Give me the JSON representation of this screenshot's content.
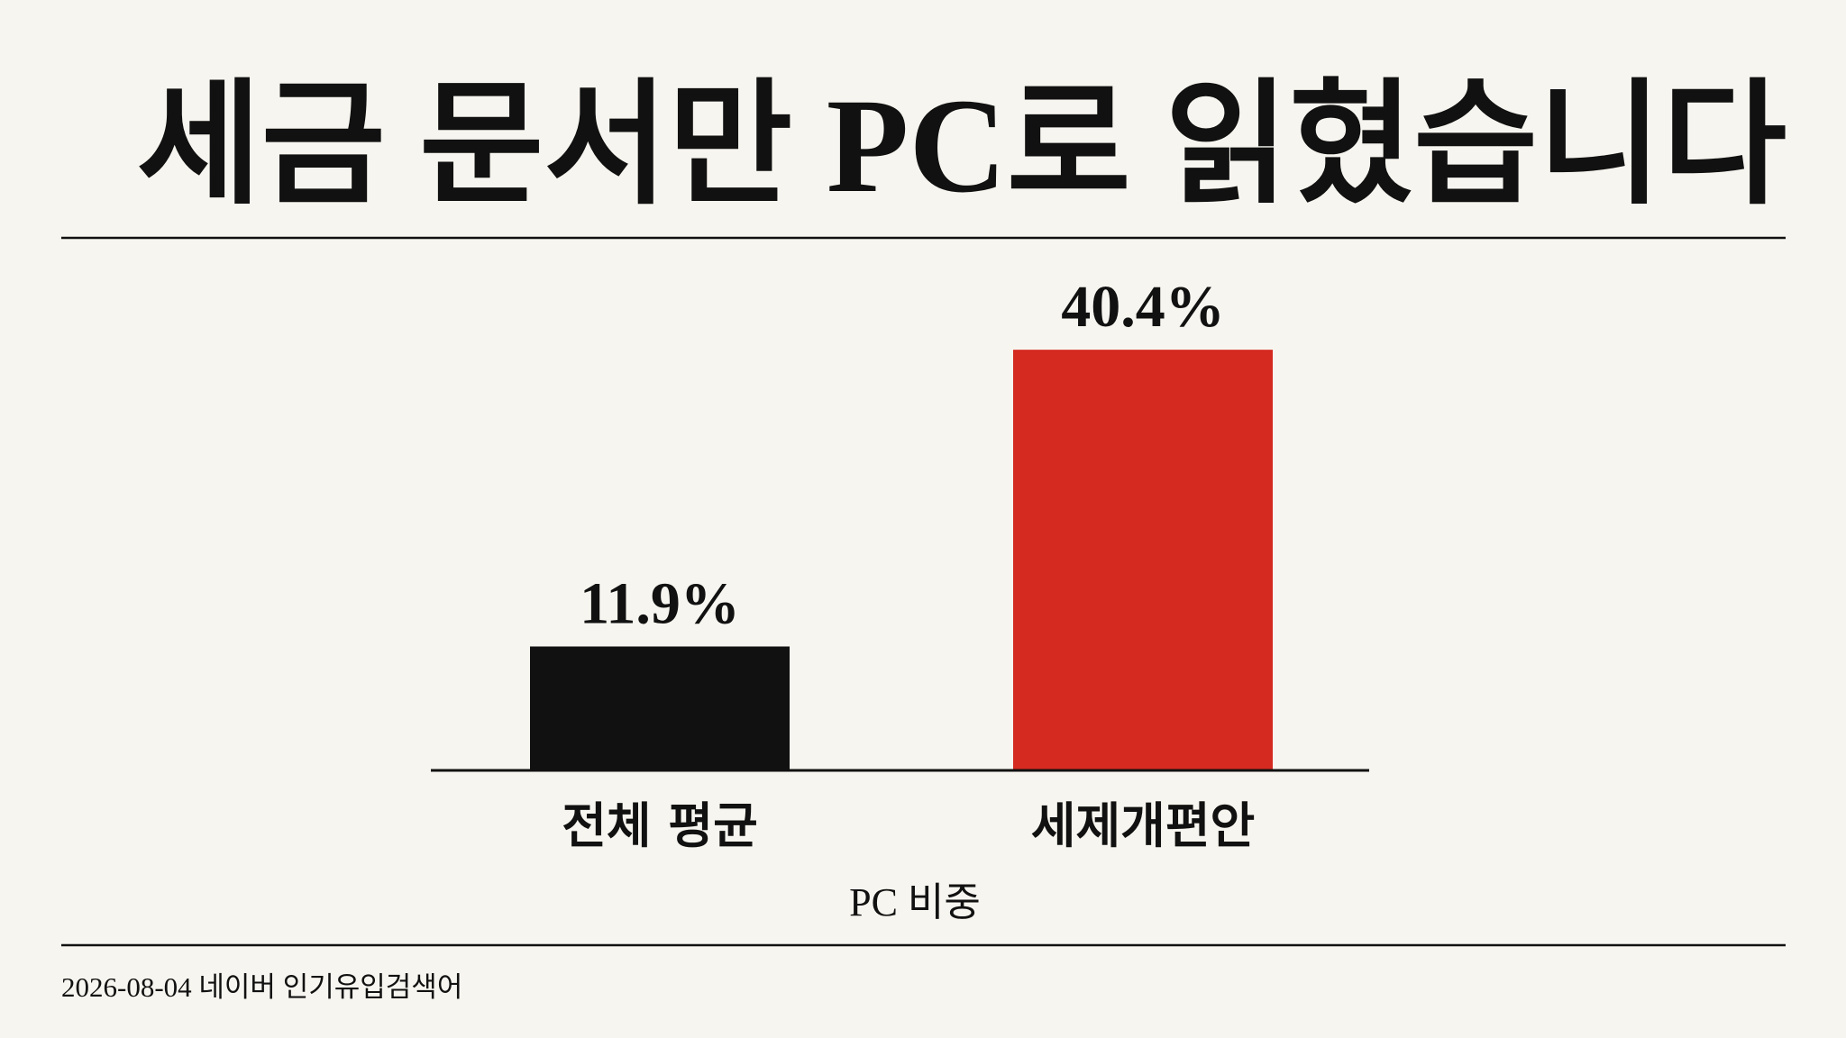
{
  "chart_data": {
    "type": "bar",
    "title": "세금 문서만 PC로 읽혔습니다",
    "categories": [
      "전체 평균",
      "세제개편안"
    ],
    "values": [
      11.9,
      40.4
    ],
    "value_labels": [
      "11.9%",
      "40.4%"
    ],
    "colors": [
      "#111111",
      "#d42a20"
    ],
    "xlabel": "PC 비중",
    "ylim": [
      0,
      45
    ],
    "footer": "2026-08-04 네이버 인기유입검색어"
  }
}
